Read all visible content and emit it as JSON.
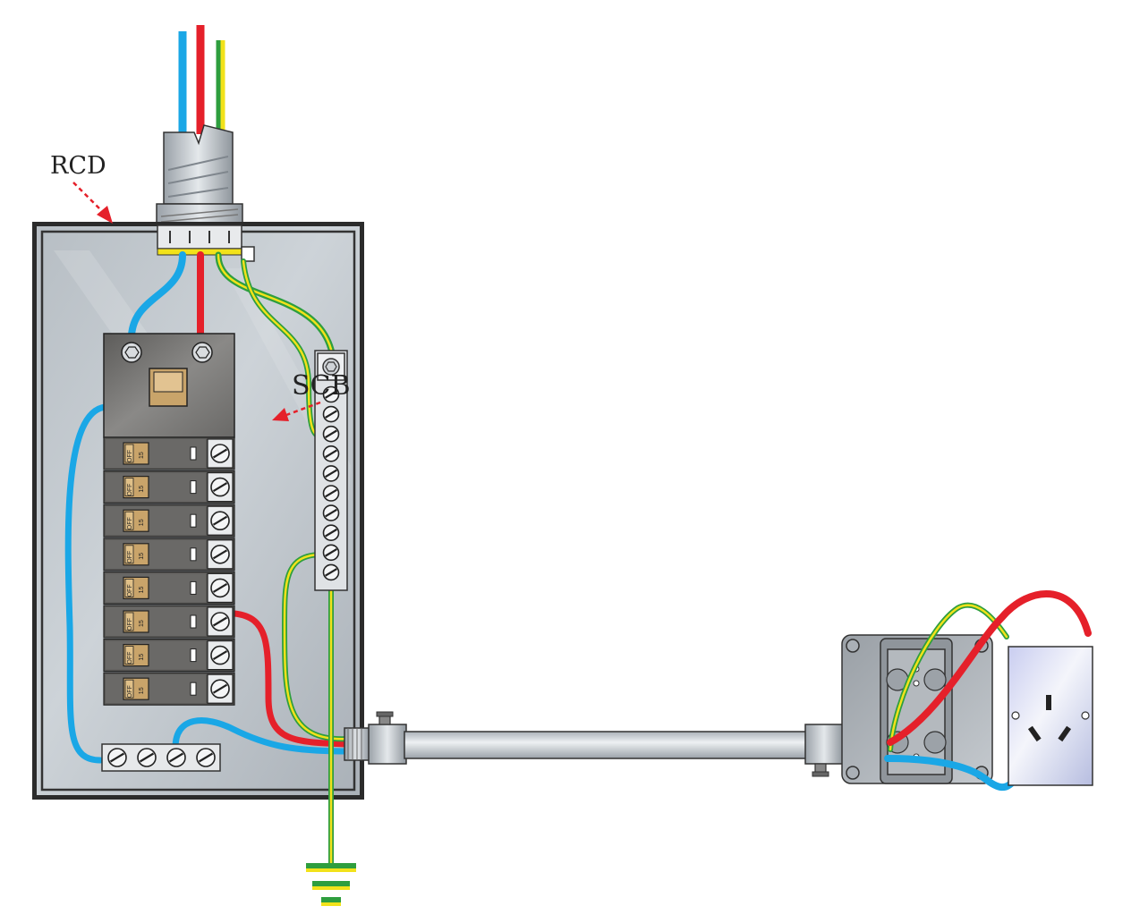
{
  "labels": {
    "rcd": "RCD",
    "scb": "SCB"
  },
  "breakers": {
    "count": 8,
    "switch_text": "OFF",
    "rating": "15"
  },
  "neutral_bar": {
    "terminals": 4
  },
  "earth_bar": {
    "terminals": 10
  },
  "wire_colors": {
    "neutral": "#1aa7e6",
    "active": "#e5202a",
    "earth_green": "#2e9e3e",
    "earth_yellow": "#f2e21a",
    "pointer": "#e5202a"
  }
}
